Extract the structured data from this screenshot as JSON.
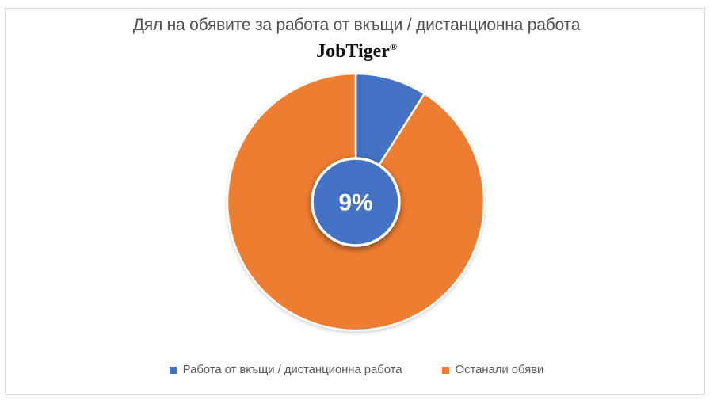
{
  "window": {
    "background": "#FFFFFF",
    "frame_border_color": "#D6D6D6"
  },
  "header": {
    "title": "Дял на обявите за работа от вкъщи / дистанционна работа",
    "brand": "JobTiger",
    "registered_mark": "®"
  },
  "legend": {
    "items": [
      {
        "label": "Работа от вкъщи / дистанционна работа",
        "color": "#4472C4"
      },
      {
        "label": "Останали обяви",
        "color": "#ED7D31"
      }
    ]
  },
  "chart_data": {
    "type": "pie",
    "title": "Дял на обявите за работа от вкъщи / дистанционна работа",
    "subtitle": "JobTiger®",
    "categories": [
      "Работа от вкъщи / дистанционна работа",
      "Останали обяви"
    ],
    "values": [
      9,
      91
    ],
    "unit": "percent",
    "colors": [
      "#4472C4",
      "#ED7D31"
    ],
    "start_angle_deg": 0,
    "direction": "clockwise",
    "separator_color": "#FFFFFF",
    "donut_center_label": "9%",
    "donut_center_fill": "#4472C4",
    "legend_position": "bottom"
  }
}
